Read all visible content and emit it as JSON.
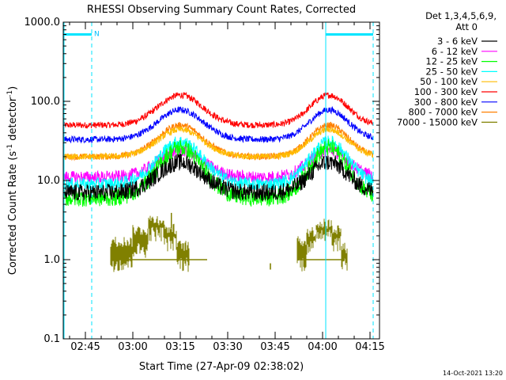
{
  "chart_data": {
    "type": "line",
    "title": "RHESSI Observing Summary Count Rates, Corrected",
    "xlabel": "Start Time (27-Apr-09 02:38:02)",
    "ylabel": "Corrected Count Rate (s⁻¹ detector⁻¹)",
    "ylabel_main": "Corrected Count Rate (s",
    "ylabel_sup1": "-1",
    "ylabel_mid": " detector",
    "ylabel_sup2": "-1",
    "ylabel_end": ")",
    "timestamp": "14-Oct-2021 13:20",
    "y_scale": "log",
    "ylim": [
      0.1,
      1000
    ],
    "xlim_minutes": [
      0,
      100
    ],
    "y_ticks": [
      {
        "value": 1000,
        "label": "1000.0"
      },
      {
        "value": 100,
        "label": "100.0"
      },
      {
        "value": 10,
        "label": "10.0"
      },
      {
        "value": 1,
        "label": "1.0"
      },
      {
        "value": 0.1,
        "label": "0.1"
      }
    ],
    "x_ticks": [
      {
        "minute": 7,
        "label": "02:45"
      },
      {
        "minute": 22,
        "label": "03:00"
      },
      {
        "minute": 37,
        "label": "03:15"
      },
      {
        "minute": 52,
        "label": "03:30"
      },
      {
        "minute": 67,
        "label": "03:45"
      },
      {
        "minute": 82,
        "label": "04:00"
      },
      {
        "minute": 97,
        "label": "04:15"
      }
    ],
    "legend_header": [
      "Det 1,3,4,5,6,9,",
      "Att 0"
    ],
    "legend_position": "right",
    "series": [
      {
        "name": "3 - 6 keV",
        "color": "#000000",
        "base": 7,
        "peak": 17
      },
      {
        "name": "6 - 12 keV",
        "color": "#ff00ff",
        "base": 11,
        "peak": 24
      },
      {
        "name": "12 - 25 keV",
        "color": "#00ff00",
        "base": 6,
        "peak": 26
      },
      {
        "name": "25 - 50 keV",
        "color": "#00ffff",
        "base": 9,
        "peak": 31
      },
      {
        "name": "50 - 100 keV",
        "color": "#ffbb00",
        "base": 20,
        "peak": 44
      },
      {
        "name": "100 - 300 keV",
        "color": "#ff0000",
        "base": 50,
        "peak": 120
      },
      {
        "name": "300 - 800 keV",
        "color": "#0000ff",
        "base": 33,
        "peak": 78
      },
      {
        "name": "800 - 7000 keV",
        "color": "#ff8000",
        "base": 20,
        "peak": 50
      },
      {
        "name": "7000 - 15000 keV",
        "color": "#808000",
        "base": 1,
        "peak": 2.6
      }
    ],
    "night_intervals_minutes": [
      [
        0,
        9
      ],
      [
        83,
        98
      ]
    ],
    "night_label": "N",
    "saa_markers_minutes": [
      0,
      9,
      83,
      98
    ]
  }
}
